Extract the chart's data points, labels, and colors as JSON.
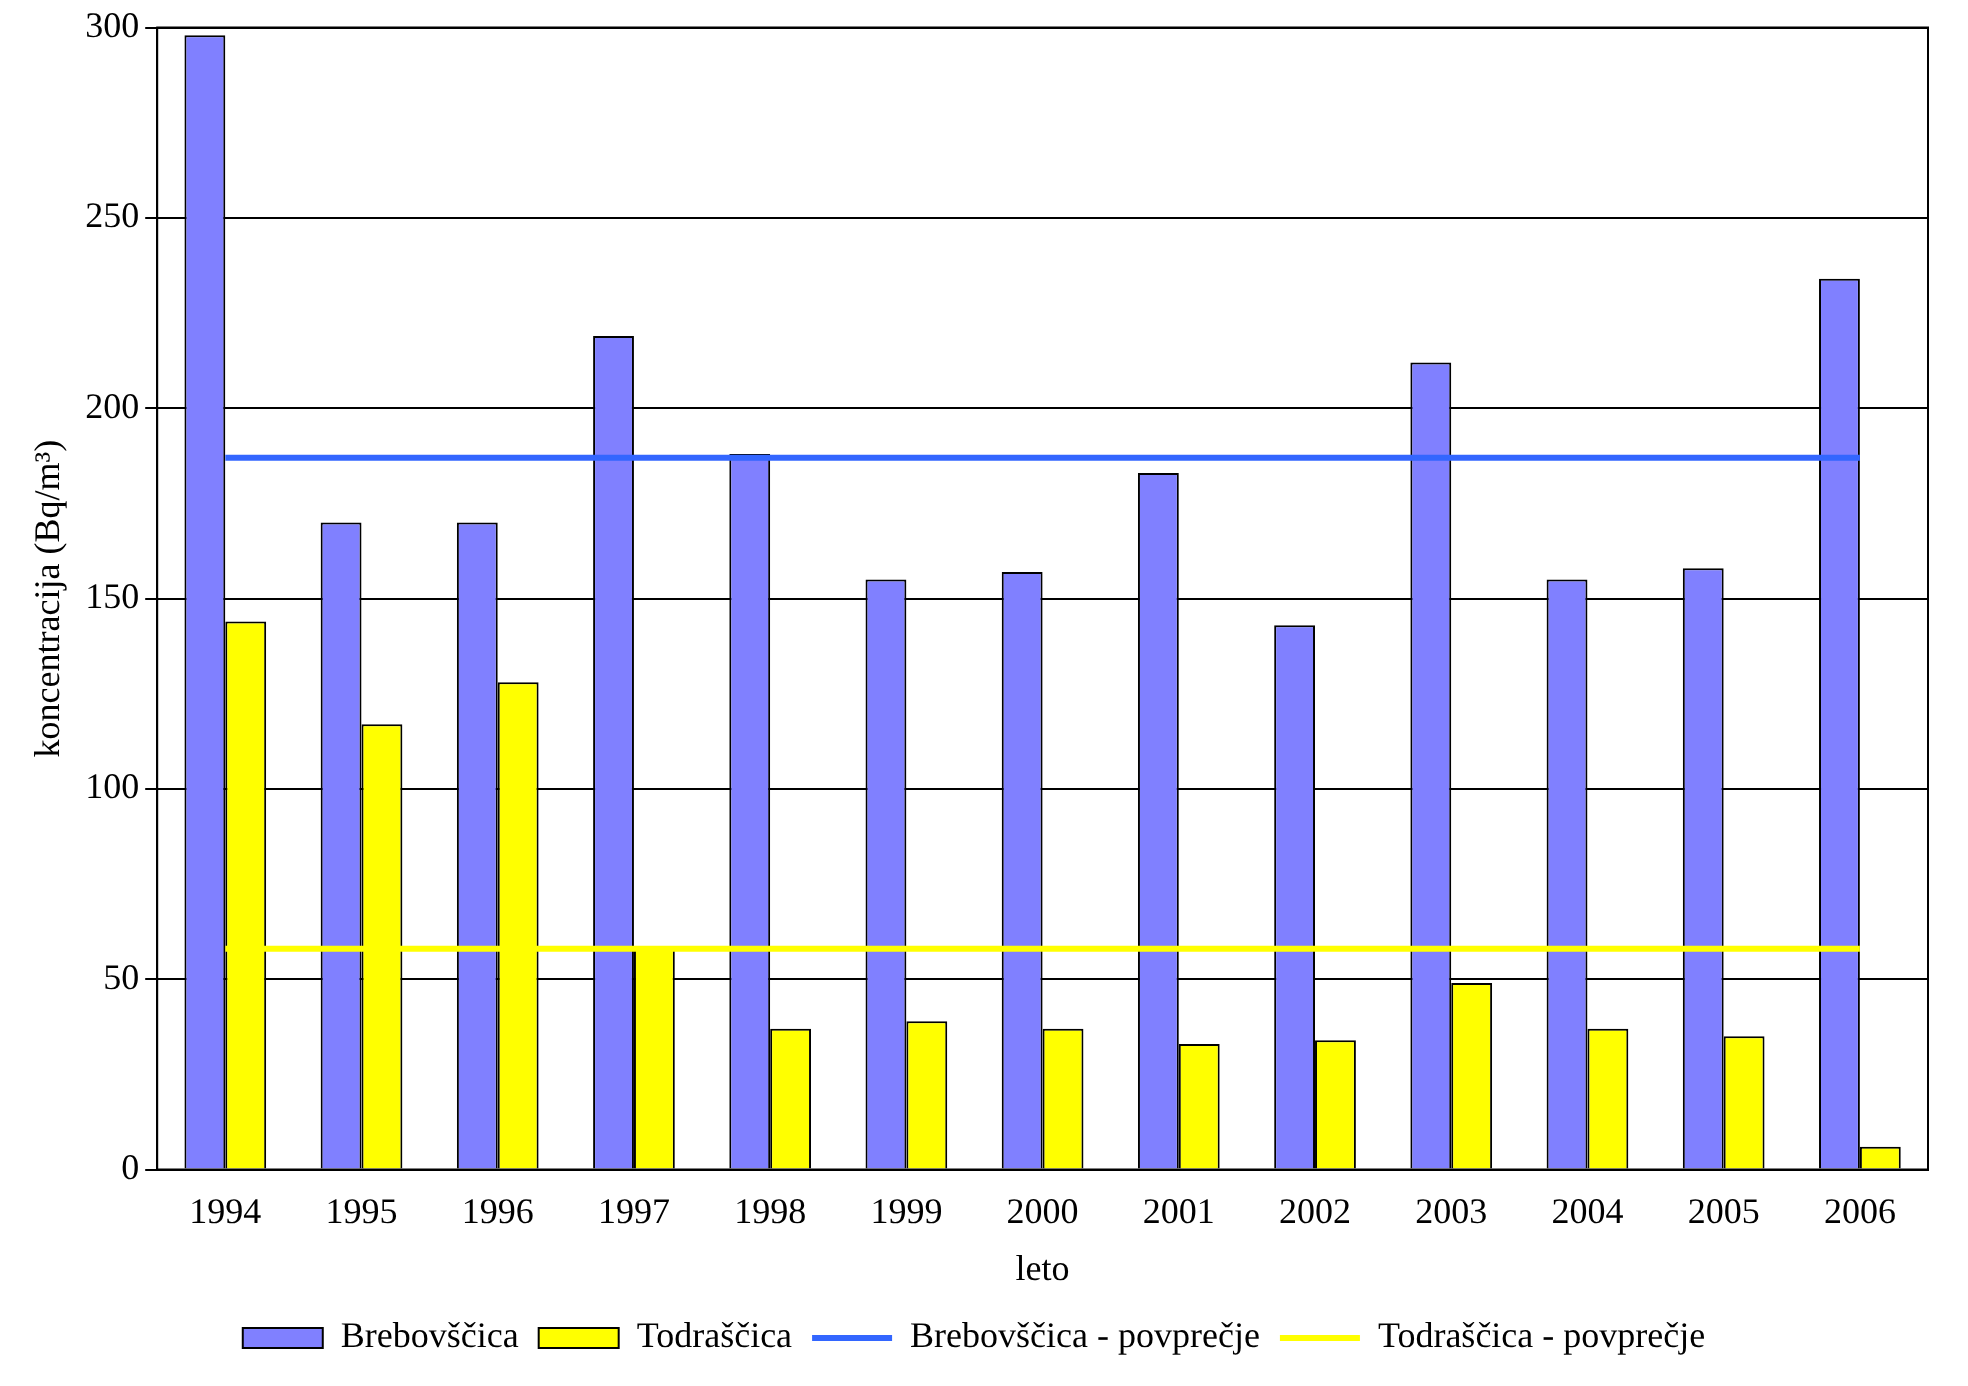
{
  "chart_data": {
    "type": "bar",
    "xlabel": "leto",
    "ylabel": "koncentracija (Bq/m³)",
    "categories": [
      "1994",
      "1995",
      "1996",
      "1997",
      "1998",
      "1999",
      "2000",
      "2001",
      "2002",
      "2003",
      "2004",
      "2005",
      "2006"
    ],
    "series": [
      {
        "name": "Brebovščica",
        "color": "#8080ff",
        "values": [
          298,
          170,
          170,
          219,
          188,
          155,
          157,
          183,
          143,
          212,
          155,
          158,
          234
        ]
      },
      {
        "name": "Todraščica",
        "color": "#ffff00",
        "values": [
          144,
          117,
          128,
          58,
          37,
          39,
          37,
          33,
          34,
          49,
          37,
          35,
          6
        ]
      },
      {
        "name": "Brebovščica - povprečje",
        "type": "line",
        "color": "#3366ff",
        "values": [
          187,
          187,
          187,
          187,
          187,
          187,
          187,
          187,
          187,
          187,
          187,
          187,
          187
        ]
      },
      {
        "name": "Todraščica - povprečje",
        "type": "line",
        "color": "#ffff00",
        "values": [
          58,
          58,
          58,
          58,
          58,
          58,
          58,
          58,
          58,
          58,
          58,
          58,
          58
        ]
      }
    ],
    "ylim": [
      0,
      300
    ],
    "yticks": [
      0,
      50,
      100,
      150,
      200,
      250,
      300
    ],
    "grid": "y",
    "legend": "bottom",
    "marker": "none"
  }
}
